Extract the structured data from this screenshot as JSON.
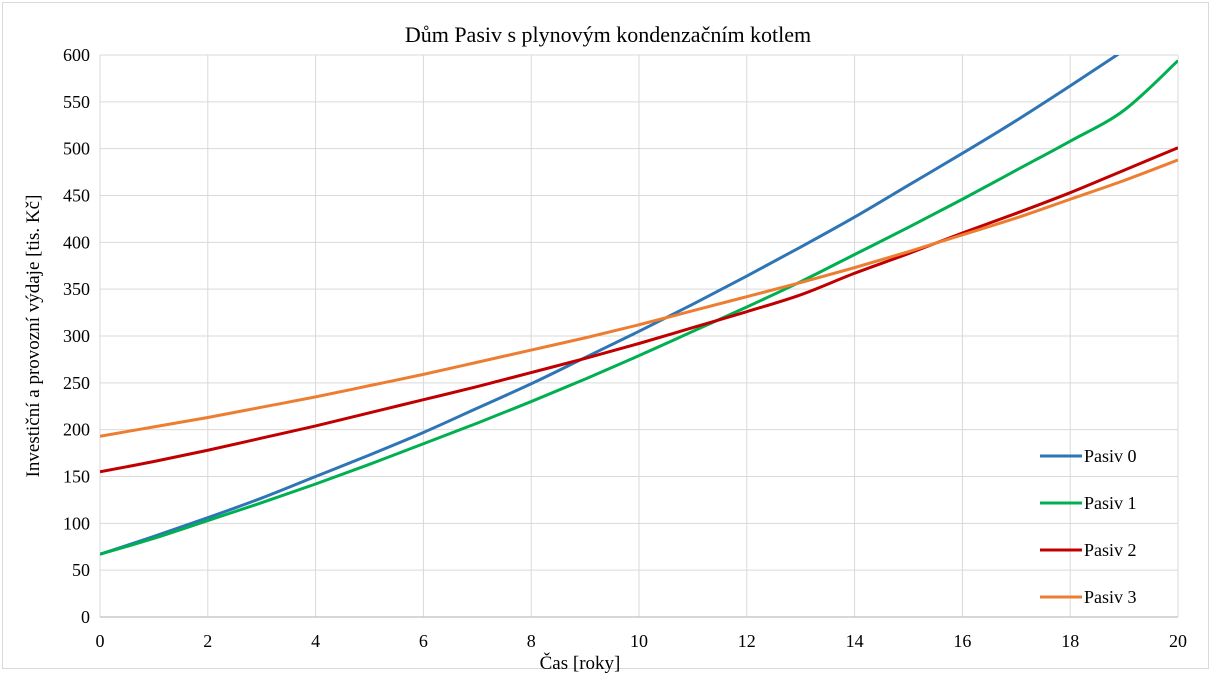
{
  "chart_data": {
    "type": "line",
    "title": "Dům Pasiv s plynovým kondenzačním kotlem",
    "xlabel": "Čas [roky]",
    "ylabel": "Investiční a provozní výdaje [tis. Kč]",
    "xlim": [
      0,
      20
    ],
    "ylim": [
      0,
      600
    ],
    "x_ticks": [
      0,
      2,
      4,
      6,
      8,
      10,
      12,
      14,
      16,
      18,
      20
    ],
    "y_ticks": [
      0,
      50,
      100,
      150,
      200,
      250,
      300,
      350,
      400,
      450,
      500,
      550,
      600
    ],
    "grid": true,
    "legend_position": "bottom-right",
    "x": [
      0,
      1,
      2,
      3,
      4,
      5,
      6,
      7,
      8,
      9,
      10,
      11,
      12,
      13,
      14,
      15,
      16,
      17,
      18,
      19,
      20
    ],
    "series": [
      {
        "name": "Pasiv 0",
        "color": "#2E75B6",
        "values": [
          67,
          86,
          106,
          127,
          150,
          173,
          197,
          223,
          249,
          277,
          305,
          334,
          364,
          395,
          427,
          461,
          495,
          530,
          567,
          605,
          644
        ]
      },
      {
        "name": "Pasiv 1",
        "color": "#00B050",
        "values": [
          67,
          84,
          103,
          122,
          142,
          163,
          185,
          207,
          230,
          254,
          279,
          305,
          331,
          358,
          387,
          416,
          446,
          477,
          508,
          541,
          594
        ]
      },
      {
        "name": "Pasiv 2",
        "color": "#C00000",
        "values": [
          155,
          166,
          178,
          191,
          204,
          218,
          232,
          246,
          261,
          276,
          292,
          309,
          326,
          344,
          367,
          388,
          410,
          431,
          453,
          477,
          501
        ]
      },
      {
        "name": "Pasiv 3",
        "color": "#ED7D31",
        "values": [
          193,
          203,
          213,
          224,
          235,
          247,
          259,
          272,
          285,
          298,
          312,
          327,
          342,
          357,
          373,
          390,
          408,
          426,
          446,
          466,
          488
        ]
      }
    ]
  }
}
